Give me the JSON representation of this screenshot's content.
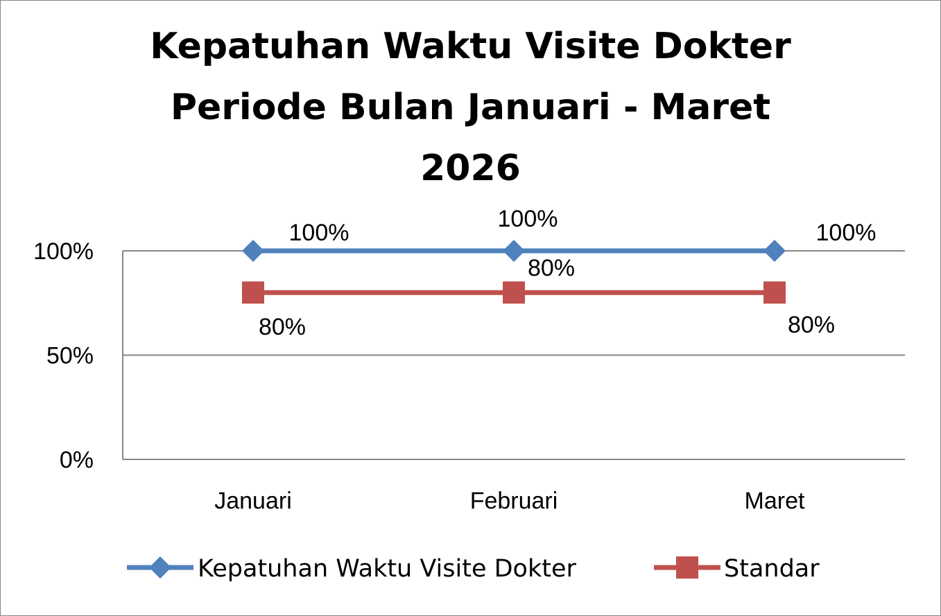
{
  "chart_data": {
    "type": "line",
    "title_lines": [
      "Kepatuhan Waktu Visite Dokter",
      "Periode Bulan Januari - Maret",
      "2026"
    ],
    "categories": [
      "Januari",
      "Februari",
      "Maret"
    ],
    "y_ticks": [
      "0%",
      "50%",
      "100%"
    ],
    "ylim": [
      0,
      1
    ],
    "grid": true,
    "legend_position": "bottom",
    "series": [
      {
        "name": "Kepatuhan Waktu Visite Dokter",
        "values": [
          1.0,
          1.0,
          1.0
        ],
        "labels": [
          "100%",
          "100%",
          "100%"
        ],
        "color": "#4F81BD",
        "marker": "diamond"
      },
      {
        "name": "Standar",
        "values": [
          0.8,
          0.8,
          0.8
        ],
        "labels": [
          "80%",
          "80%",
          "80%"
        ],
        "color": "#C0504D",
        "marker": "square"
      }
    ]
  }
}
